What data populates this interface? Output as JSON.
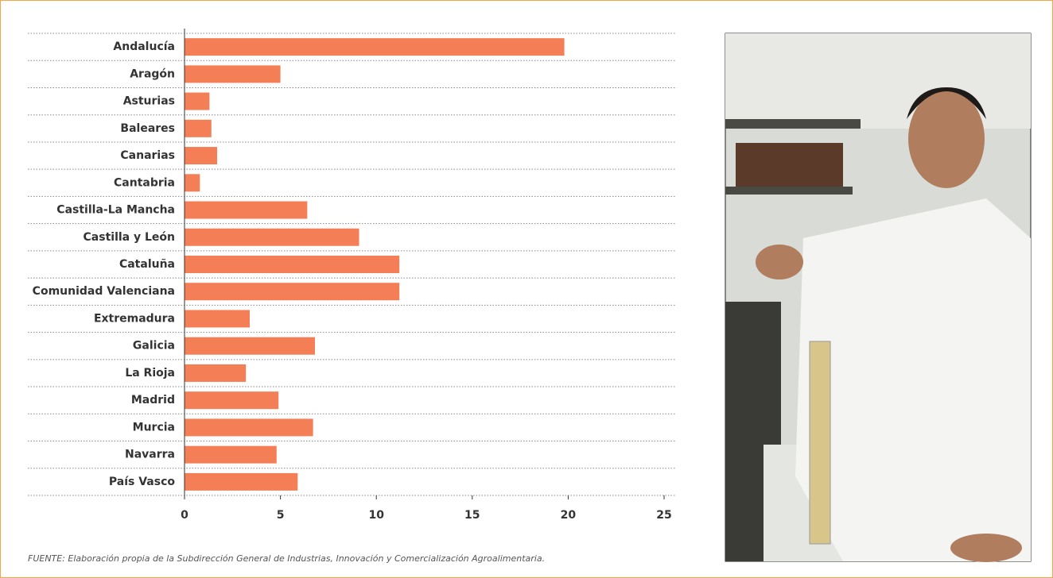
{
  "chart_data": {
    "type": "bar",
    "orientation": "horizontal",
    "categories": [
      "Andalucía",
      "Aragón",
      "Asturias",
      "Baleares",
      "Canarias",
      "Cantabria",
      "Castilla-La Mancha",
      "Castilla y León",
      "Cataluña",
      "Comunidad Valenciana",
      "Extremadura",
      "Galicia",
      "La Rioja",
      "Madrid",
      "Murcia",
      "Navarra",
      "País Vasco"
    ],
    "values": [
      19.8,
      5.0,
      1.3,
      1.4,
      1.7,
      0.8,
      6.4,
      9.1,
      11.2,
      11.2,
      3.4,
      6.8,
      3.2,
      4.9,
      6.7,
      4.8,
      5.9
    ],
    "color": "#f47f56",
    "xlim": [
      0,
      25
    ],
    "xticks": [
      0,
      5,
      10,
      15,
      20,
      25
    ],
    "source": "FUENTE: Elaboración propia de la Subdirección General de Industrias, Innovación y Comercialización Agroalimentaria."
  }
}
